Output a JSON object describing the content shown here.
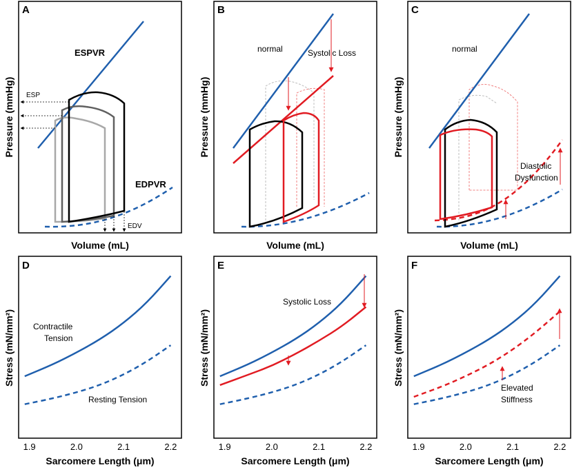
{
  "colors": {
    "blue": "#1f5fad",
    "red": "#e11b22",
    "black": "#000000",
    "gray_dark": "#606060",
    "gray_light": "#a8a8a8",
    "ghost_red": "#f08080",
    "ghost_gray": "#bdbdbd"
  },
  "chart_data": [
    {
      "id": "A",
      "type": "line",
      "panel_label": "A",
      "xlabel": "Volume (mL)",
      "ylabel": "Pressure (mmHg)",
      "annotations": {
        "espvr": "ESPVR",
        "edpvr": "EDPVR",
        "esp": "ESP",
        "edv": "EDV"
      },
      "series": [
        {
          "name": "ESPVR",
          "style": "solid-blue"
        },
        {
          "name": "EDPVR",
          "style": "dashed-blue"
        },
        {
          "name": "PV loop (high preload)",
          "style": "black"
        },
        {
          "name": "PV loop (mid preload)",
          "style": "dark-gray"
        },
        {
          "name": "PV loop (low preload)",
          "style": "light-gray"
        }
      ]
    },
    {
      "id": "B",
      "type": "line",
      "panel_label": "B",
      "xlabel": "Volume (mL)",
      "ylabel": "Pressure (mmHg)",
      "annotations": {
        "normal": "normal",
        "systolic_loss": "Systolic Loss"
      },
      "series": [
        {
          "name": "ESPVR normal",
          "style": "solid-blue"
        },
        {
          "name": "ESPVR systolic loss",
          "style": "solid-red"
        },
        {
          "name": "EDPVR",
          "style": "dashed-blue"
        },
        {
          "name": "PV loop normal",
          "style": "black"
        },
        {
          "name": "PV loop systolic loss",
          "style": "red"
        }
      ]
    },
    {
      "id": "C",
      "type": "line",
      "panel_label": "C",
      "xlabel": "Volume (mL)",
      "ylabel": "Pressure (mmHg)",
      "annotations": {
        "normal": "normal",
        "diastolic_1": "Diastolic",
        "diastolic_2": "Dysfunction"
      },
      "series": [
        {
          "name": "ESPVR",
          "style": "solid-blue"
        },
        {
          "name": "EDPVR normal",
          "style": "dashed-blue"
        },
        {
          "name": "EDPVR stiffened",
          "style": "dashed-red"
        },
        {
          "name": "PV loop normal",
          "style": "black"
        },
        {
          "name": "PV loop diastolic dysfunction",
          "style": "red"
        }
      ]
    },
    {
      "id": "D",
      "type": "line",
      "panel_label": "D",
      "xlabel": "Sarcomere Length (μm)",
      "ylabel": "Stress (mN/mm²)",
      "x_ticks": [
        "1.9",
        "2.0",
        "2.1",
        "2.2"
      ],
      "xlim": [
        1.88,
        2.22
      ],
      "ylim": [
        0,
        100
      ],
      "annotations": {
        "contractile_1": "Contractile",
        "contractile_2": "Tension",
        "resting": "Resting Tension"
      },
      "series": [
        {
          "name": "Contractile Tension",
          "style": "solid-blue",
          "x": [
            1.89,
            1.95,
            2.0,
            2.05,
            2.1,
            2.15,
            2.2
          ],
          "y": [
            28,
            36,
            44,
            53,
            64,
            78,
            96
          ]
        },
        {
          "name": "Resting Tension",
          "style": "dashed-blue",
          "x": [
            1.89,
            1.95,
            2.0,
            2.05,
            2.1,
            2.15,
            2.2
          ],
          "y": [
            9,
            13,
            17,
            22,
            29,
            38,
            49
          ]
        }
      ]
    },
    {
      "id": "E",
      "type": "line",
      "panel_label": "E",
      "xlabel": "Sarcomere Length (μm)",
      "ylabel": "Stress (mN/mm²)",
      "x_ticks": [
        "1.9",
        "2.0",
        "2.1",
        "2.2"
      ],
      "xlim": [
        1.88,
        2.22
      ],
      "ylim": [
        0,
        100
      ],
      "annotations": {
        "systolic_loss": "Systolic Loss"
      },
      "series": [
        {
          "name": "Contractile normal",
          "style": "solid-blue",
          "x": [
            1.89,
            1.95,
            2.0,
            2.05,
            2.1,
            2.15,
            2.2
          ],
          "y": [
            28,
            36,
            44,
            53,
            64,
            78,
            96
          ]
        },
        {
          "name": "Contractile systolic loss",
          "style": "solid-red",
          "x": [
            1.89,
            1.95,
            2.0,
            2.05,
            2.1,
            2.15,
            2.2
          ],
          "y": [
            22,
            29,
            35,
            43,
            52,
            62,
            75
          ]
        },
        {
          "name": "Resting Tension",
          "style": "dashed-blue",
          "x": [
            1.89,
            1.95,
            2.0,
            2.05,
            2.1,
            2.15,
            2.2
          ],
          "y": [
            9,
            13,
            17,
            22,
            29,
            38,
            49
          ]
        }
      ]
    },
    {
      "id": "F",
      "type": "line",
      "panel_label": "F",
      "xlabel": "Sarcomere Length (μm)",
      "ylabel": "Stress (mN/mm²)",
      "x_ticks": [
        "1.9",
        "2.0",
        "2.1",
        "2.2"
      ],
      "xlim": [
        1.88,
        2.22
      ],
      "ylim": [
        0,
        100
      ],
      "annotations": {
        "elevated_1": "Elevated",
        "elevated_2": "Stiffness"
      },
      "series": [
        {
          "name": "Contractile Tension",
          "style": "solid-blue",
          "x": [
            1.89,
            1.95,
            2.0,
            2.05,
            2.1,
            2.15,
            2.2
          ],
          "y": [
            28,
            36,
            44,
            53,
            64,
            78,
            96
          ]
        },
        {
          "name": "Resting elevated stiffness",
          "style": "dashed-red",
          "x": [
            1.89,
            1.95,
            2.0,
            2.05,
            2.1,
            2.15,
            2.2
          ],
          "y": [
            14,
            21,
            28,
            36,
            46,
            58,
            72
          ]
        },
        {
          "name": "Resting normal",
          "style": "dashed-blue",
          "x": [
            1.89,
            1.95,
            2.0,
            2.05,
            2.1,
            2.15,
            2.2
          ],
          "y": [
            9,
            13,
            17,
            22,
            29,
            38,
            49
          ]
        }
      ]
    }
  ]
}
